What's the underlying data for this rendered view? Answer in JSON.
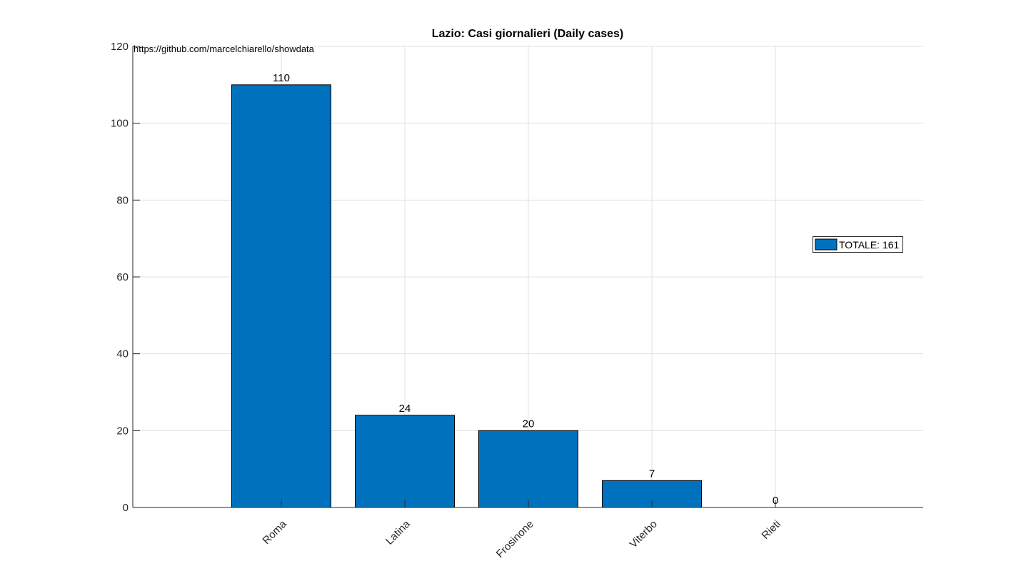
{
  "chart_data": {
    "type": "bar",
    "title": "Lazio: Casi giornalieri (Daily cases)",
    "categories": [
      "Roma",
      "Latina",
      "Frosinone",
      "Viterbo",
      "Rieti"
    ],
    "values": [
      110,
      24,
      20,
      7,
      0
    ],
    "data_labels": [
      "110",
      "24",
      "20",
      "7",
      "0"
    ],
    "xlabel": "",
    "ylabel": "",
    "ylim": [
      0,
      120
    ],
    "yticks": [
      0,
      20,
      40,
      60,
      80,
      100,
      120
    ],
    "ytick_labels": [
      "0",
      "20",
      "40",
      "60",
      "80",
      "100",
      "120"
    ],
    "grid": true,
    "legend": {
      "entries": [
        "TOTALE: 161"
      ],
      "placement": "right"
    },
    "annotation": "https://github.com/marcelchiarello/showdata",
    "colors": {
      "bar": "#0072bd",
      "bar_edge": "#000000",
      "grid": "#e0e0e0",
      "axis": "#262626"
    }
  }
}
